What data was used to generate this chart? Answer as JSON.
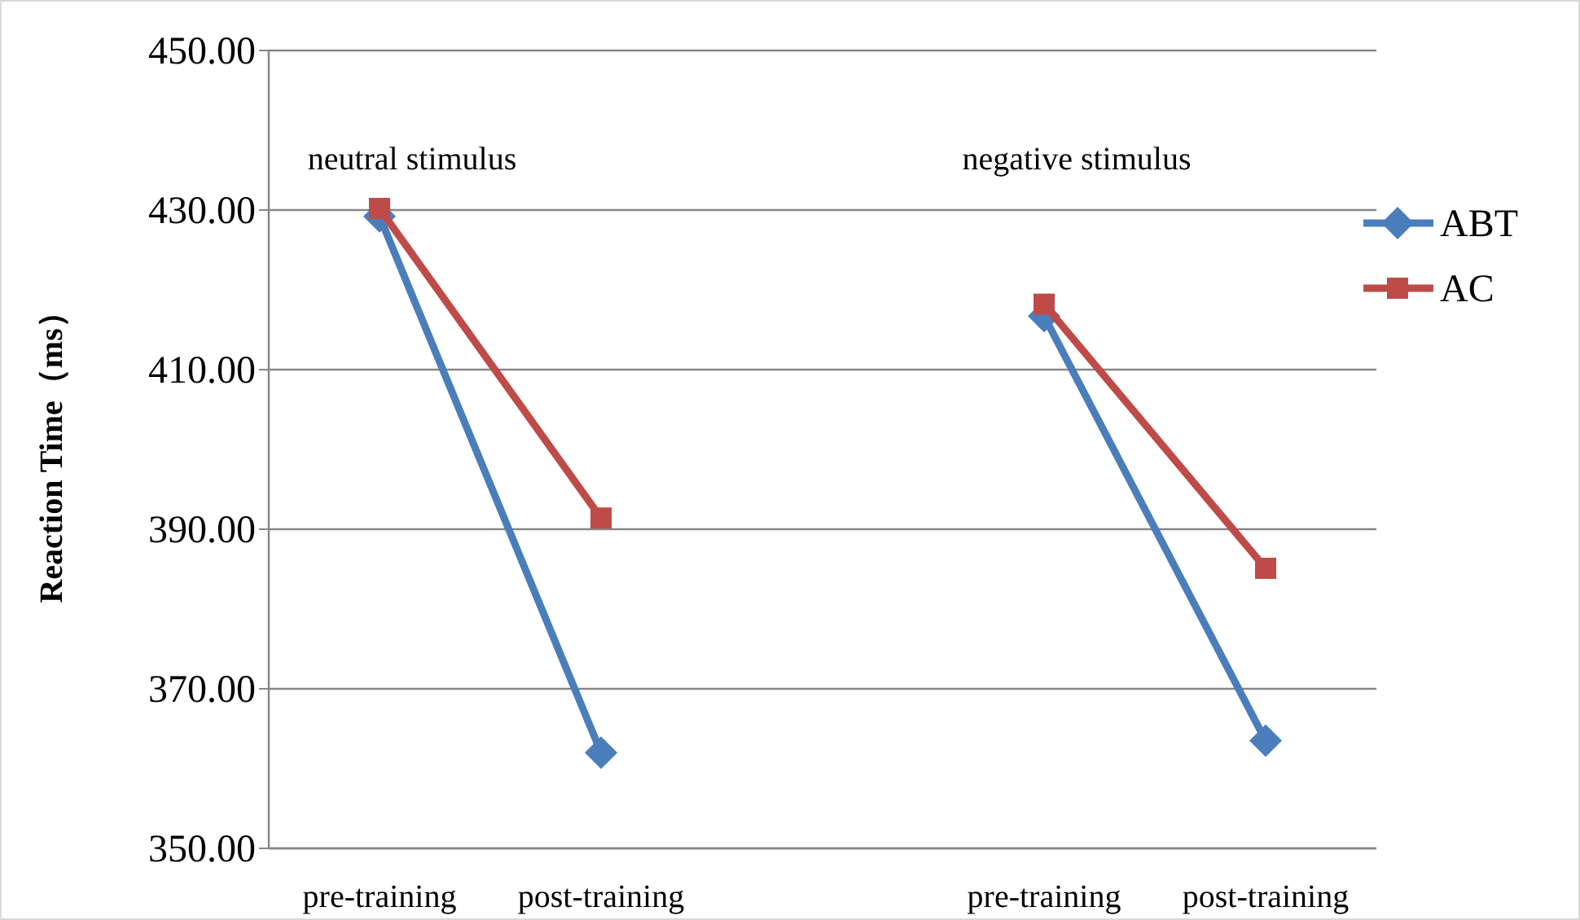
{
  "chart_data": {
    "type": "line",
    "ylabel": "Reaction Time（ms）",
    "categories": [
      "pre-training",
      "post-training",
      null,
      "pre-training",
      "post-training"
    ],
    "series": [
      {
        "name": "ABT",
        "color": "#4a7ebb",
        "marker": "diamond",
        "values": [
          429.2,
          362.0,
          null,
          416.7,
          363.5
        ]
      },
      {
        "name": "AC",
        "color": "#be4b48",
        "marker": "square",
        "values": [
          430.2,
          391.4,
          null,
          418.2,
          385.1
        ]
      }
    ],
    "ylim": [
      350,
      450
    ],
    "yticks": [
      {
        "value": 350,
        "label": "350.00"
      },
      {
        "value": 370,
        "label": "370.00"
      },
      {
        "value": 390,
        "label": "390.00"
      },
      {
        "value": 410,
        "label": "410.00"
      },
      {
        "value": 430,
        "label": "430.00"
      },
      {
        "value": 450,
        "label": "450.00"
      }
    ],
    "annotations": [
      "neutral stimulus",
      "negative stimulus"
    ],
    "grid": "y",
    "legend": "right",
    "line_style": "solid"
  }
}
